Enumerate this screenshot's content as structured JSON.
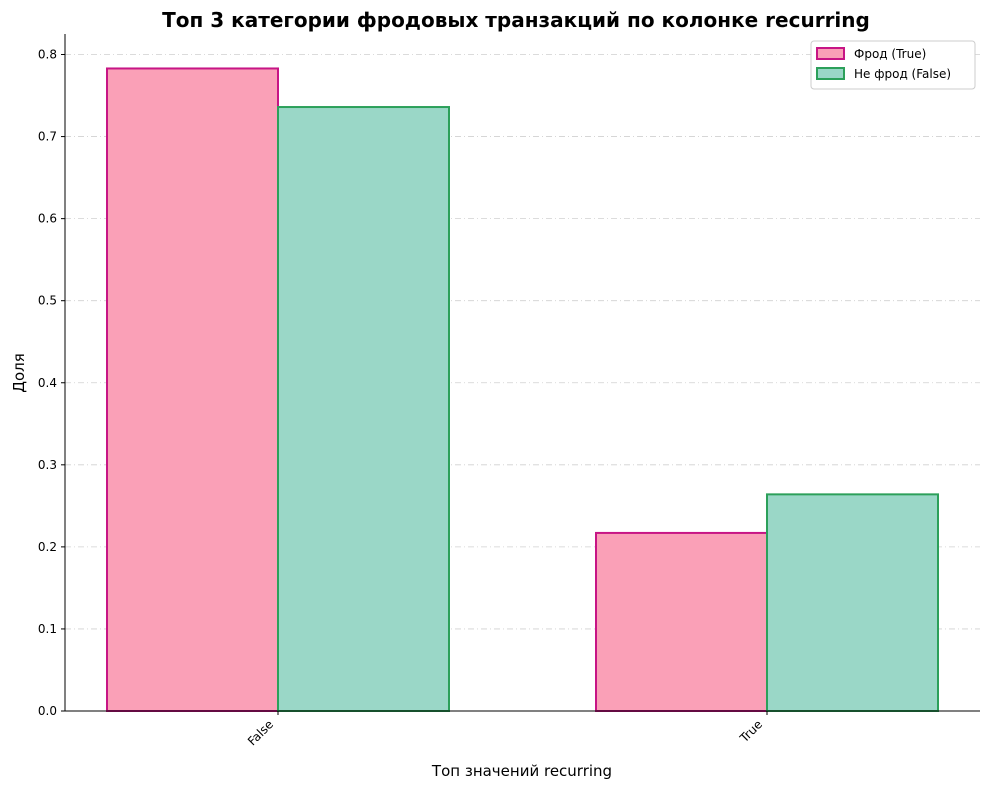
{
  "chart_data": {
    "type": "bar",
    "title": "Топ 3 категории фродовых транзакций по колонке recurring",
    "xlabel": "Топ значений recurring",
    "ylabel": "Доля",
    "categories": [
      "False",
      "True"
    ],
    "series": [
      {
        "name": "Фрод (True)",
        "values": [
          0.783,
          0.217
        ],
        "fill": "#faa0b7",
        "stroke": "#c71585"
      },
      {
        "name": "Не фрод (False)",
        "values": [
          0.736,
          0.264
        ],
        "fill": "#9ad7c7",
        "stroke": "#2ca05a"
      }
    ],
    "ylim": [
      0,
      0.825
    ],
    "yticks": [
      "0.0",
      "0.1",
      "0.2",
      "0.3",
      "0.4",
      "0.5",
      "0.6",
      "0.7",
      "0.8"
    ],
    "ytick_values": [
      0,
      0.1,
      0.2,
      0.3,
      0.4,
      0.5,
      0.6,
      0.7,
      0.8
    ],
    "grid": "y",
    "legend_position": "top-right",
    "xtick_rotation": 45
  }
}
